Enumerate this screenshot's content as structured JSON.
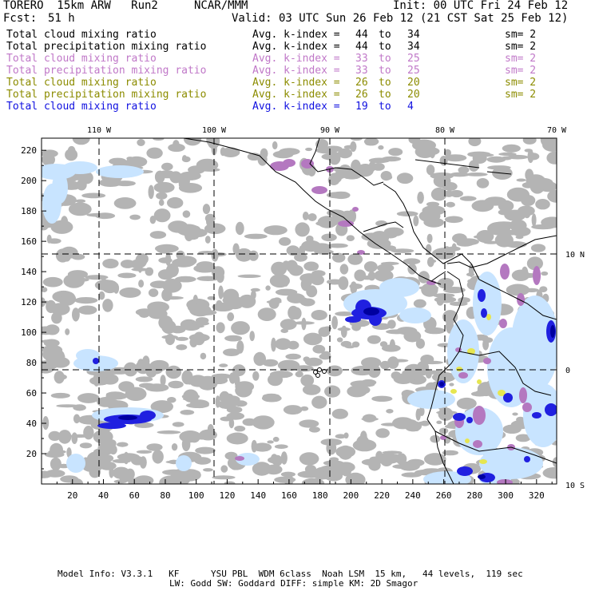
{
  "header": {
    "model": "TORERO  15km ARW   Run2",
    "org": "NCAR/MMM",
    "init": "Init: 00 UTC Fri 24 Feb 12",
    "fcst_label": "Fcst:",
    "fcst_value": "51 h",
    "valid": "Valid: 03 UTC Sun 26 Feb 12 (21 CST Sat 25 Feb 12)"
  },
  "legend": [
    {
      "field": "Total cloud mixing ratio",
      "avg": "Avg. k-index =",
      "from": "44",
      "to_word": "to",
      "to": "34",
      "sm": "sm= 2",
      "color": "#000000"
    },
    {
      "field": "Total precipitation mixing ratio",
      "avg": "Avg. k-index =",
      "from": "44",
      "to_word": "to",
      "to": "34",
      "sm": "sm= 2",
      "color": "#000000"
    },
    {
      "field": "Total cloud mixing ratio",
      "avg": "Avg. k-index =",
      "from": "33",
      "to_word": "to",
      "to": "25",
      "sm": "sm= 2",
      "color": "#c078c8"
    },
    {
      "field": "Total precipitation mixing ratio",
      "avg": "Avg. k-index =",
      "from": "33",
      "to_word": "to",
      "to": "25",
      "sm": "sm= 2",
      "color": "#c078c8"
    },
    {
      "field": "Total cloud mixing ratio",
      "avg": "Avg. k-index =",
      "from": "26",
      "to_word": "to",
      "to": "20",
      "sm": "sm= 2",
      "color": "#8c8c00"
    },
    {
      "field": "Total precipitation mixing ratio",
      "avg": "Avg. k-index =",
      "from": "26",
      "to_word": "to",
      "to": "20",
      "sm": "sm= 2",
      "color": "#8c8c00"
    },
    {
      "field": "Total cloud mixing ratio",
      "avg": "Avg. k-index =",
      "from": "19",
      "to_word": "to",
      "to": "4",
      "sm": "",
      "color": "#1010e0"
    }
  ],
  "map": {
    "x_ticks": [
      "20",
      "40",
      "60",
      "80",
      "100",
      "120",
      "140",
      "160",
      "180",
      "200",
      "220",
      "240",
      "260",
      "280",
      "300",
      "320"
    ],
    "y_ticks": [
      "20",
      "40",
      "60",
      "80",
      "100",
      "120",
      "140",
      "160",
      "180",
      "200",
      "220"
    ],
    "lon_labels": [
      "110 W",
      "100 W",
      "90 W",
      "80 W",
      "70 W"
    ],
    "lat_labels": [
      "10 N",
      "0",
      "10 S"
    ],
    "colors": {
      "cloud_gray": "#b4b4b4",
      "purple": "#b478c0",
      "olive_yellow": "#e6e650",
      "light_blue": "#c8e4ff",
      "blue": "#2020e0",
      "dark_blue": "#0000a0"
    }
  },
  "footer": {
    "line1": "Model Info: V3.3.1   KF      YSU PBL  WDM 6class  Noah LSM  15 km,   44 levels,  119 sec",
    "line2": "LW: Godd SW: Goddard DIFF: simple KM: 2D Smagor"
  }
}
